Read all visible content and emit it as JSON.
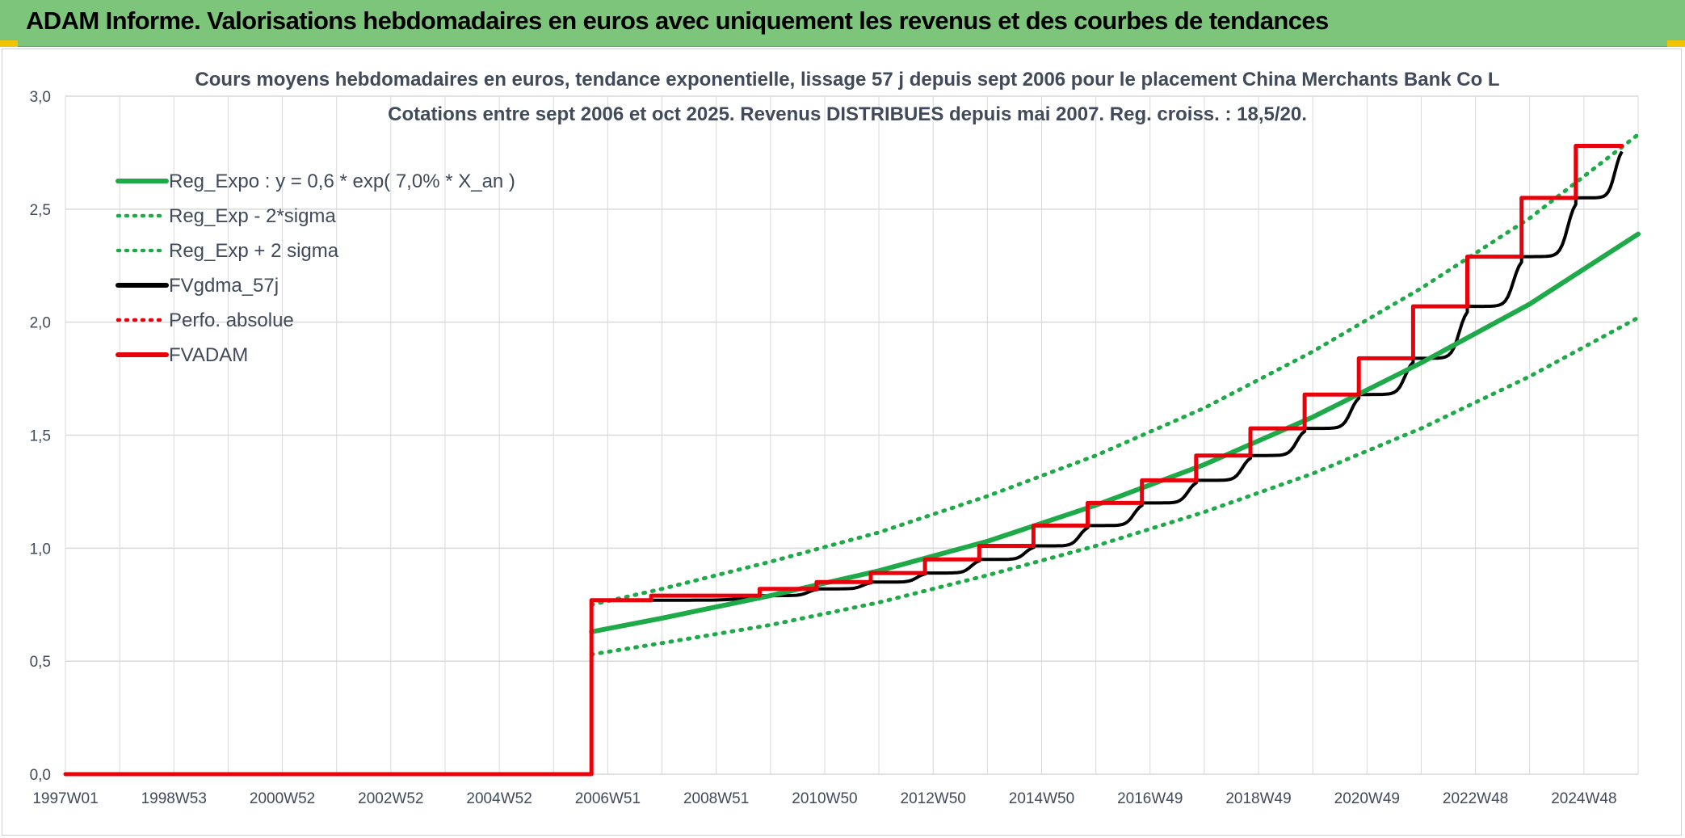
{
  "header": {
    "title": "ADAM Informe. Valorisations hebdomadaires en euros avec uniquement les revenus et des courbes de tendances"
  },
  "colors": {
    "header_bg": "#7dc57b",
    "corner_accent": "#f2c300",
    "reg_green": "#1faa4a",
    "fv_black": "#000000",
    "adam_red": "#e8000b",
    "grid": "#d9d9d9",
    "text": "#404a5a"
  },
  "chart_data": {
    "type": "line",
    "title": "Cours moyens hebdomadaires en euros, tendance exponentielle, lissage 57 j depuis sept 2006 pour le placement China Merchants Bank Co L",
    "subtitle": "Cotations entre sept 2006 et oct 2025. Revenus DISTRIBUES depuis mai 2007. Reg. croiss. : 18,5/20.",
    "xlabel": "",
    "ylabel": "",
    "ylim": [
      0,
      3
    ],
    "y_ticks": [
      "0,0",
      "0,5",
      "1,0",
      "1,5",
      "2,0",
      "2,5",
      "3,0"
    ],
    "x_ticks": [
      "1997W01",
      "1998W53",
      "2000W52",
      "2002W52",
      "2004W52",
      "2006W51",
      "2008W51",
      "2010W50",
      "2012W50",
      "2014W50",
      "2016W49",
      "2018W49",
      "2020W49",
      "2022W48",
      "2024W48"
    ],
    "xlim_years": [
      1997.0,
      2026.0
    ],
    "grid": true,
    "legend_position": "top-left",
    "legend": [
      {
        "name": "Reg_Expo : y = 0,6 * exp( 7,0% *  X_an )",
        "color": "#1faa4a",
        "style": "solid"
      },
      {
        "name": "Reg_Exp - 2*sigma",
        "color": "#1faa4a",
        "style": "dotted"
      },
      {
        "name": "Reg_Exp + 2 sigma",
        "color": "#1faa4a",
        "style": "dotted"
      },
      {
        "name": "FVgdma_57j",
        "color": "#000000",
        "style": "solid"
      },
      {
        "name": "Perfo. absolue",
        "color": "#e8000b",
        "style": "dotted"
      },
      {
        "name": "FVADAM",
        "color": "#e8000b",
        "style": "solid"
      }
    ],
    "series": [
      {
        "name": "Reg_Expo : y = 0,6 * exp( 7,0% *  X_an )",
        "x": [
          2006.7,
          2008,
          2010,
          2012,
          2014,
          2016,
          2018,
          2020,
          2022,
          2024,
          2026
        ],
        "values": [
          0.63,
          0.69,
          0.79,
          0.9,
          1.03,
          1.19,
          1.37,
          1.58,
          1.82,
          2.08,
          2.39
        ]
      },
      {
        "name": "Reg_Exp - 2*sigma",
        "x": [
          2006.7,
          2008,
          2010,
          2012,
          2014,
          2016,
          2018,
          2020,
          2022,
          2024,
          2026
        ],
        "values": [
          0.53,
          0.58,
          0.66,
          0.76,
          0.88,
          1.01,
          1.16,
          1.33,
          1.53,
          1.76,
          2.02
        ]
      },
      {
        "name": "Reg_Exp + 2 sigma",
        "x": [
          2006.7,
          2008,
          2010,
          2012,
          2014,
          2016,
          2018,
          2020,
          2022,
          2024,
          2026
        ],
        "values": [
          0.75,
          0.82,
          0.94,
          1.07,
          1.23,
          1.41,
          1.62,
          1.87,
          2.15,
          2.46,
          2.83
        ]
      },
      {
        "name": "FVADAM",
        "x": [
          1997.0,
          2006.7,
          2006.7,
          2007.8,
          2007.8,
          2009.8,
          2009.8,
          2010.85,
          2010.85,
          2011.85,
          2011.85,
          2012.85,
          2012.85,
          2013.85,
          2013.85,
          2014.85,
          2014.85,
          2015.85,
          2015.85,
          2016.85,
          2016.85,
          2017.85,
          2017.85,
          2018.85,
          2018.85,
          2019.85,
          2019.85,
          2020.85,
          2020.85,
          2021.85,
          2021.85,
          2022.85,
          2022.85,
          2023.85,
          2023.85,
          2024.85,
          2024.85,
          2025.7
        ],
        "values": [
          0.0,
          0.0,
          0.77,
          0.77,
          0.79,
          0.79,
          0.82,
          0.82,
          0.85,
          0.85,
          0.89,
          0.89,
          0.95,
          0.95,
          1.01,
          1.01,
          1.1,
          1.1,
          1.2,
          1.2,
          1.3,
          1.3,
          1.41,
          1.41,
          1.53,
          1.53,
          1.68,
          1.68,
          1.84,
          1.84,
          2.07,
          2.07,
          2.29,
          2.29,
          2.55,
          2.55,
          2.78,
          2.78
        ]
      },
      {
        "name": "FVgdma_57j",
        "x": [
          2006.7,
          2007.8,
          2009.8,
          2010.85,
          2011.85,
          2012.85,
          2013.85,
          2014.85,
          2015.85,
          2016.85,
          2017.85,
          2018.85,
          2019.85,
          2020.85,
          2021.85,
          2022.85,
          2023.85,
          2024.85,
          2025.7
        ],
        "values": [
          0.77,
          0.77,
          0.79,
          0.82,
          0.85,
          0.89,
          0.95,
          1.01,
          1.1,
          1.2,
          1.3,
          1.41,
          1.53,
          1.68,
          1.84,
          2.07,
          2.29,
          2.55,
          2.78
        ]
      }
    ]
  }
}
